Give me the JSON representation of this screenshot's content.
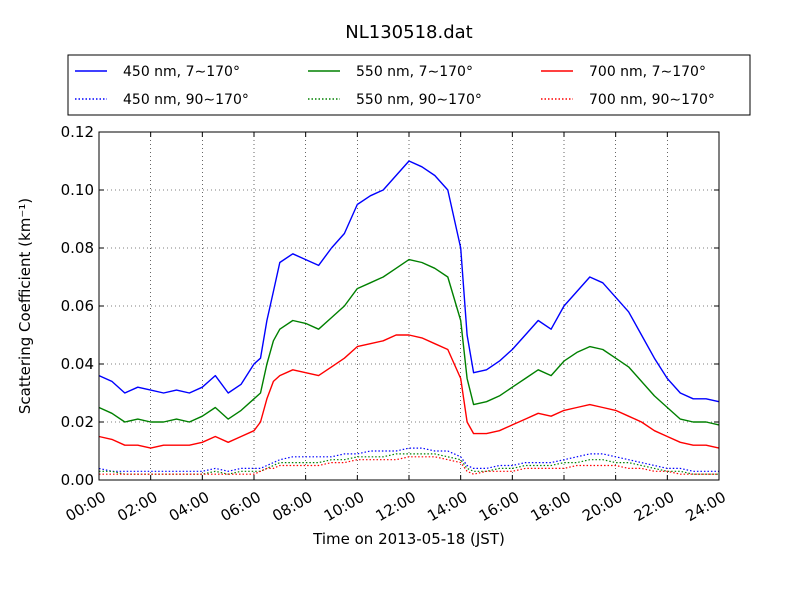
{
  "chart_data": {
    "type": "line",
    "title": "NL130518.dat",
    "xlabel": "Time on 2013-05-18 (JST)",
    "ylabel": "Scattering Coefficient (km⁻¹)",
    "ylim": [
      0.0,
      0.12
    ],
    "xlim_hours": [
      0,
      24
    ],
    "grid": true,
    "legend_placement": "top, outside plot area, 3 columns",
    "xticks": [
      "00:00",
      "02:00",
      "04:00",
      "06:00",
      "08:00",
      "10:00",
      "12:00",
      "14:00",
      "16:00",
      "18:00",
      "20:00",
      "22:00",
      "24:00"
    ],
    "yticks": [
      "0.00",
      "0.02",
      "0.04",
      "0.06",
      "0.08",
      "0.10",
      "0.12"
    ],
    "x_hours": [
      0,
      0.5,
      1,
      1.5,
      2,
      2.5,
      3,
      3.5,
      4,
      4.5,
      5,
      5.5,
      6,
      6.25,
      6.5,
      6.75,
      7,
      7.5,
      8,
      8.5,
      9,
      9.5,
      10,
      10.5,
      11,
      11.5,
      12,
      12.5,
      13,
      13.5,
      14,
      14.25,
      14.5,
      15,
      15.5,
      16,
      16.5,
      17,
      17.5,
      18,
      18.5,
      19,
      19.5,
      20,
      20.5,
      21,
      21.5,
      22,
      22.5,
      23,
      23.5,
      24
    ],
    "series": [
      {
        "name": "450 nm, 7∼170°",
        "color": "#0000ff",
        "style": "solid",
        "values": [
          0.036,
          0.034,
          0.03,
          0.032,
          0.031,
          0.03,
          0.031,
          0.03,
          0.032,
          0.036,
          0.03,
          0.033,
          0.04,
          0.042,
          0.055,
          0.065,
          0.075,
          0.078,
          0.076,
          0.074,
          0.08,
          0.085,
          0.095,
          0.098,
          0.1,
          0.105,
          0.11,
          0.108,
          0.105,
          0.1,
          0.08,
          0.05,
          0.037,
          0.038,
          0.041,
          0.045,
          0.05,
          0.055,
          0.052,
          0.06,
          0.065,
          0.07,
          0.068,
          0.063,
          0.058,
          0.05,
          0.042,
          0.035,
          0.03,
          0.028,
          0.028,
          0.027
        ]
      },
      {
        "name": "550 nm, 7∼170°",
        "color": "#008000",
        "style": "solid",
        "values": [
          0.025,
          0.023,
          0.02,
          0.021,
          0.02,
          0.02,
          0.021,
          0.02,
          0.022,
          0.025,
          0.021,
          0.024,
          0.028,
          0.03,
          0.04,
          0.048,
          0.052,
          0.055,
          0.054,
          0.052,
          0.056,
          0.06,
          0.066,
          0.068,
          0.07,
          0.073,
          0.076,
          0.075,
          0.073,
          0.07,
          0.055,
          0.035,
          0.026,
          0.027,
          0.029,
          0.032,
          0.035,
          0.038,
          0.036,
          0.041,
          0.044,
          0.046,
          0.045,
          0.042,
          0.039,
          0.034,
          0.029,
          0.025,
          0.021,
          0.02,
          0.02,
          0.019
        ]
      },
      {
        "name": "700 nm, 7∼170°",
        "color": "#ff0000",
        "style": "solid",
        "values": [
          0.015,
          0.014,
          0.012,
          0.012,
          0.011,
          0.012,
          0.012,
          0.012,
          0.013,
          0.015,
          0.013,
          0.015,
          0.017,
          0.02,
          0.028,
          0.034,
          0.036,
          0.038,
          0.037,
          0.036,
          0.039,
          0.042,
          0.046,
          0.047,
          0.048,
          0.05,
          0.05,
          0.049,
          0.047,
          0.045,
          0.035,
          0.02,
          0.016,
          0.016,
          0.017,
          0.019,
          0.021,
          0.023,
          0.022,
          0.024,
          0.025,
          0.026,
          0.025,
          0.024,
          0.022,
          0.02,
          0.017,
          0.015,
          0.013,
          0.012,
          0.012,
          0.011
        ]
      },
      {
        "name": "450 nm, 90∼170°",
        "color": "#0000ff",
        "style": "dotted",
        "values": [
          0.004,
          0.003,
          0.003,
          0.003,
          0.003,
          0.003,
          0.003,
          0.003,
          0.003,
          0.004,
          0.003,
          0.004,
          0.004,
          0.004,
          0.005,
          0.006,
          0.007,
          0.008,
          0.008,
          0.008,
          0.008,
          0.009,
          0.009,
          0.01,
          0.01,
          0.01,
          0.011,
          0.011,
          0.01,
          0.01,
          0.008,
          0.005,
          0.004,
          0.004,
          0.005,
          0.005,
          0.006,
          0.006,
          0.006,
          0.007,
          0.008,
          0.009,
          0.009,
          0.008,
          0.007,
          0.006,
          0.005,
          0.004,
          0.004,
          0.003,
          0.003,
          0.003
        ]
      },
      {
        "name": "550 nm, 90∼170°",
        "color": "#008000",
        "style": "dotted",
        "values": [
          0.003,
          0.003,
          0.002,
          0.002,
          0.002,
          0.002,
          0.002,
          0.002,
          0.002,
          0.003,
          0.002,
          0.003,
          0.003,
          0.003,
          0.004,
          0.005,
          0.006,
          0.006,
          0.006,
          0.006,
          0.007,
          0.007,
          0.008,
          0.008,
          0.008,
          0.009,
          0.009,
          0.009,
          0.009,
          0.008,
          0.007,
          0.004,
          0.003,
          0.003,
          0.004,
          0.004,
          0.005,
          0.005,
          0.005,
          0.006,
          0.006,
          0.007,
          0.007,
          0.006,
          0.006,
          0.005,
          0.004,
          0.003,
          0.003,
          0.002,
          0.002,
          0.002
        ]
      },
      {
        "name": "700 nm, 90∼170°",
        "color": "#ff0000",
        "style": "dotted",
        "values": [
          0.002,
          0.002,
          0.002,
          0.002,
          0.002,
          0.002,
          0.002,
          0.002,
          0.002,
          0.002,
          0.002,
          0.002,
          0.002,
          0.003,
          0.004,
          0.004,
          0.005,
          0.005,
          0.005,
          0.005,
          0.006,
          0.006,
          0.007,
          0.007,
          0.007,
          0.007,
          0.008,
          0.008,
          0.008,
          0.007,
          0.006,
          0.003,
          0.002,
          0.003,
          0.003,
          0.003,
          0.004,
          0.004,
          0.004,
          0.004,
          0.005,
          0.005,
          0.005,
          0.005,
          0.004,
          0.004,
          0.003,
          0.003,
          0.002,
          0.002,
          0.002,
          0.002
        ]
      }
    ]
  }
}
